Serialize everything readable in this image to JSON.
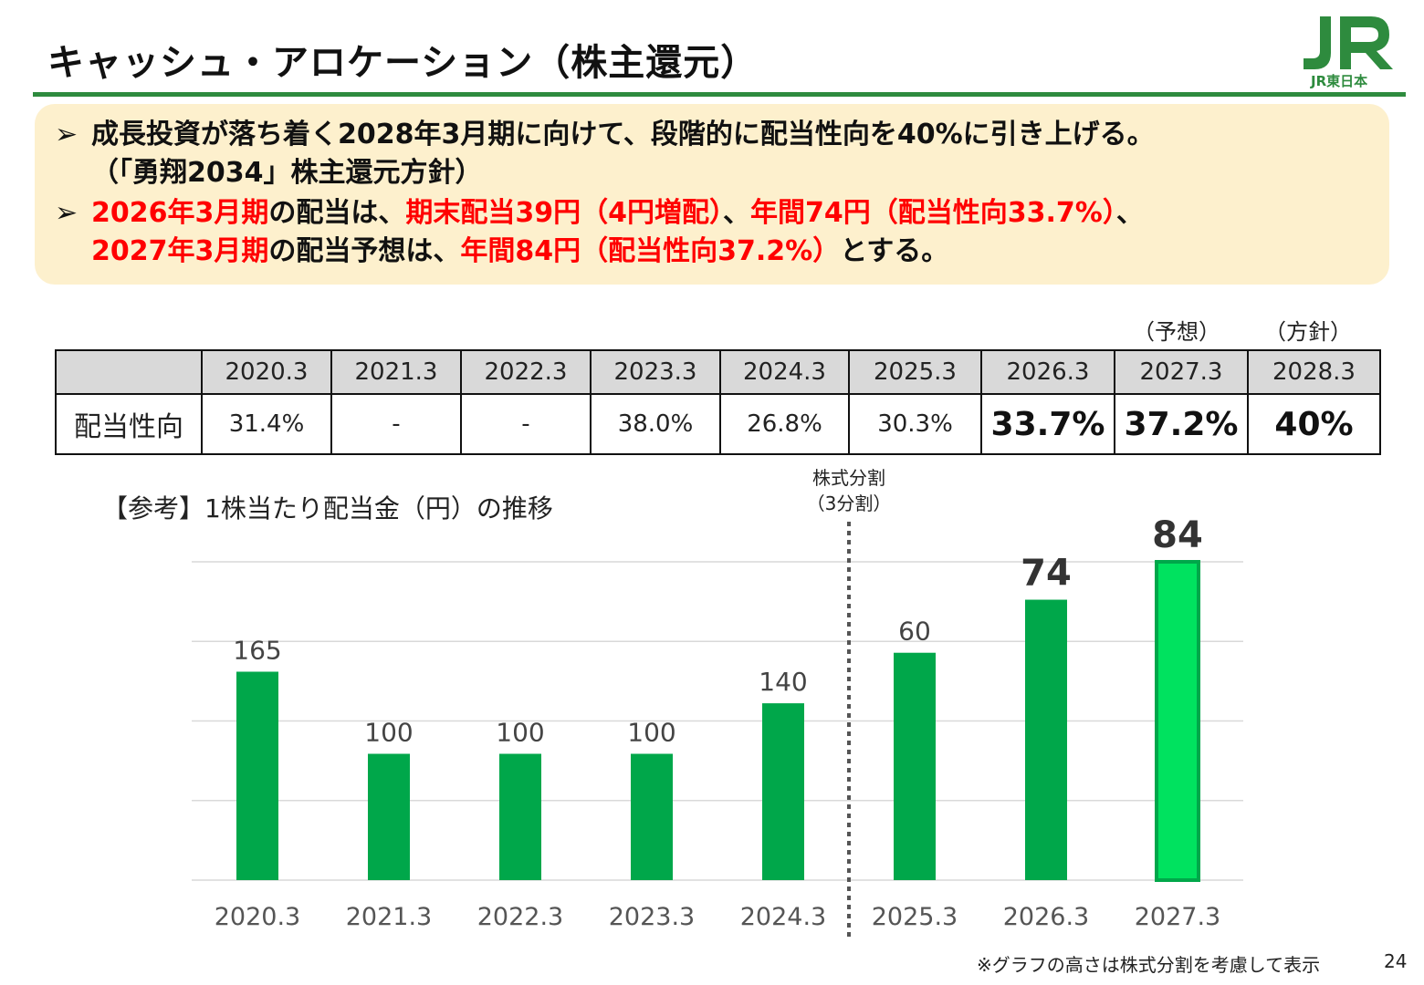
{
  "title": "キャッシュ・アロケーション（株主還元）",
  "logo": {
    "mark": "JR",
    "name": "JR東日本"
  },
  "summary": {
    "bullet1_line1": "成長投資が落ち着く2028年3月期に向けて、段階的に配当性向を40%に引き上げる。",
    "bullet1_line2": "（「勇翔2034」株主還元方針）",
    "bullet2_line1": [
      {
        "text": "2026年3月期",
        "red": true
      },
      {
        "text": "の配当は、",
        "red": false
      },
      {
        "text": "期末配当39円（4円増配）",
        "red": true
      },
      {
        "text": "、",
        "red": false
      },
      {
        "text": "年間74円（配当性向33.7%）",
        "red": true
      },
      {
        "text": "、",
        "red": false
      }
    ],
    "bullet2_line2": [
      {
        "text": "2027年3月期",
        "red": true
      },
      {
        "text": "の配当予想は、",
        "red": false
      },
      {
        "text": "年間84円（配当性向37.2%）",
        "red": true
      },
      {
        "text": "とする。",
        "red": false
      }
    ]
  },
  "payout_table": {
    "forecast_label": "（予想）",
    "policy_label": "（方針）",
    "years": [
      "2020.3",
      "2021.3",
      "2022.3",
      "2023.3",
      "2024.3",
      "2025.3",
      "2026.3",
      "2027.3",
      "2028.3"
    ],
    "row_label": "配当性向",
    "values": [
      "31.4%",
      "-",
      "-",
      "38.0%",
      "26.8%",
      "30.3%",
      "33.7%",
      "37.2%",
      "40%"
    ],
    "bold": [
      false,
      false,
      false,
      false,
      false,
      false,
      true,
      true,
      true
    ]
  },
  "chart_title": "【参考】1株当たり配当金（円）の推移",
  "split_note_line1": "株式分割",
  "split_note_line2": "（3分割）",
  "chart_data": {
    "type": "bar",
    "categories": [
      "2020.3",
      "2021.3",
      "2022.3",
      "2023.3",
      "2024.3",
      "2025.3",
      "2026.3",
      "2027.3"
    ],
    "values": [
      165,
      100,
      100,
      100,
      140,
      60,
      74,
      84
    ],
    "title": "【参考】1株当たり配当金（円）の推移",
    "xlabel": "",
    "ylabel": "",
    "annotation": "株式分割（3分割）",
    "split_after_index": 4,
    "split_factor": 3,
    "bold_labels": [
      false,
      false,
      false,
      false,
      false,
      false,
      true,
      true
    ],
    "grid": true,
    "colors": {
      "bar": "#00a74a",
      "highlight": "#00e25f",
      "highlight_border": "#00a74a"
    }
  },
  "footnote": "※グラフの高さは株式分割を考慮して表示",
  "page_number": "24",
  "colors": {
    "accent_green": "#2e8b3e",
    "summary_bg": "#fdf0cd",
    "emphasis_red": "#ff0000"
  }
}
